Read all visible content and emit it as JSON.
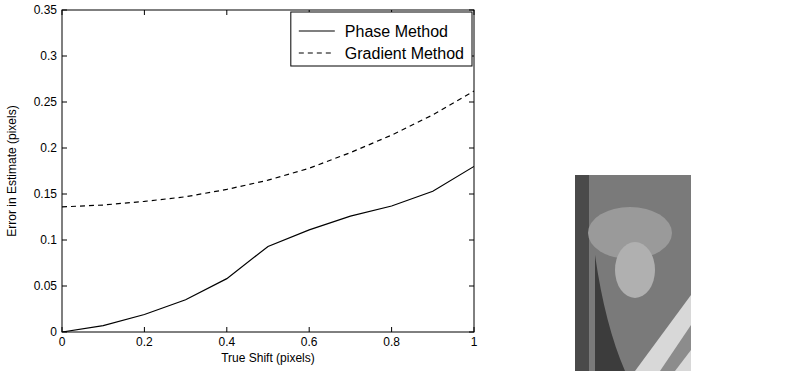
{
  "chart_data": {
    "type": "line",
    "x_label": "True Shift (pixels)",
    "y_label": "Error in Estimate (pixels)",
    "x": [
      0,
      0.1,
      0.2,
      0.3,
      0.4,
      0.5,
      0.6,
      0.7,
      0.8,
      0.9,
      1
    ],
    "series": [
      {
        "name": "Phase Method",
        "color": "#000000",
        "line_style": "solid",
        "values": [
          0,
          0.007,
          0.019,
          0.035,
          0.058,
          0.093,
          0.111,
          0.126,
          0.137,
          0.153,
          0.18
        ]
      },
      {
        "name": "Gradient Method",
        "color": "#000000",
        "line_style": "dashed",
        "values": [
          0.136,
          0.138,
          0.142,
          0.147,
          0.155,
          0.165,
          0.178,
          0.195,
          0.214,
          0.236,
          0.262
        ]
      }
    ],
    "xlim": [
      0,
      1
    ],
    "xticks": [
      0,
      0.2,
      0.4,
      0.6,
      0.8,
      1
    ],
    "ylim": [
      0,
      0.35
    ],
    "yticks": [
      0,
      0.05,
      0.1,
      0.15,
      0.2,
      0.25,
      0.3,
      0.35
    ],
    "grid": false,
    "legend": "upper right"
  }
}
